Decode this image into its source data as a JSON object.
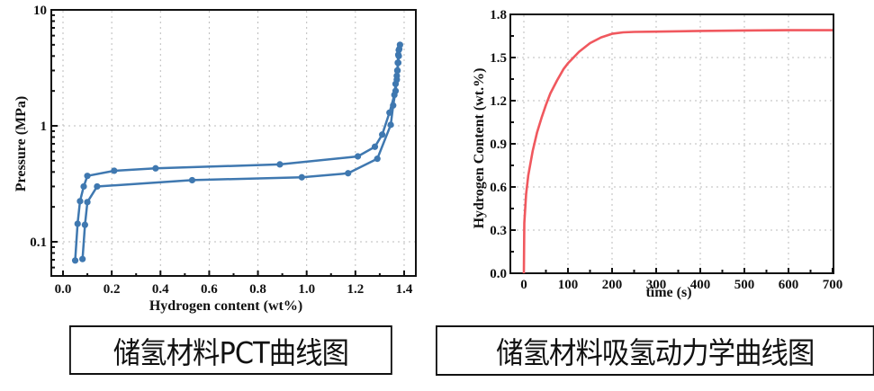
{
  "captions": {
    "left": "储氢材料PCT曲线图",
    "right": "储氢材料吸氢动力学曲线图"
  },
  "colors": {
    "pct_series": "#3f78b0",
    "kinetics_series": "#f0585e",
    "axis": "#111111",
    "grid": "#bbbbbb"
  },
  "chart_data": [
    {
      "type": "line",
      "title": "",
      "xlabel": "Hydrogen content (wt%)",
      "ylabel": "Pressure (MPa)",
      "xlim": [
        -0.05,
        1.45
      ],
      "ylim": [
        0.05,
        10
      ],
      "yscale": "log",
      "x_ticks": [
        "0.0",
        "0.2",
        "0.4",
        "0.6",
        "0.8",
        "1.0",
        "1.2",
        "1.4"
      ],
      "y_ticks": [
        "0.1",
        "1",
        "10"
      ],
      "grid": true,
      "legend": null,
      "series": [
        {
          "name": "upper curve",
          "points": [
            [
              0.05,
              0.069
            ],
            [
              0.06,
              0.143
            ],
            [
              0.07,
              0.224
            ],
            [
              0.085,
              0.3
            ],
            [
              0.1,
              0.37
            ],
            [
              0.21,
              0.41
            ],
            [
              0.38,
              0.43
            ],
            [
              0.89,
              0.465
            ],
            [
              1.21,
              0.545
            ],
            [
              1.28,
              0.66
            ],
            [
              1.31,
              0.84
            ],
            [
              1.34,
              1.3
            ],
            [
              1.36,
              1.85
            ],
            [
              1.365,
              2.3
            ],
            [
              1.37,
              2.7
            ],
            [
              1.372,
              3.0
            ],
            [
              1.374,
              3.5
            ],
            [
              1.376,
              4.1
            ],
            [
              1.378,
              4.5
            ],
            [
              1.383,
              5.0
            ]
          ]
        },
        {
          "name": "lower curve",
          "points": [
            [
              0.08,
              0.071
            ],
            [
              0.09,
              0.14
            ],
            [
              0.1,
              0.22
            ],
            [
              0.14,
              0.3
            ],
            [
              0.53,
              0.34
            ],
            [
              0.98,
              0.36
            ],
            [
              1.17,
              0.39
            ],
            [
              1.29,
              0.52
            ],
            [
              1.345,
              1.02
            ],
            [
              1.355,
              1.5
            ],
            [
              1.365,
              2.0
            ],
            [
              1.37,
              2.5
            ],
            [
              1.373,
              3.0
            ],
            [
              1.376,
              3.5
            ],
            [
              1.378,
              4.0
            ],
            [
              1.38,
              4.6
            ]
          ]
        }
      ]
    },
    {
      "type": "line",
      "title": "",
      "xlabel": "time (s)",
      "ylabel": "Hydrogen Content (wt.%)",
      "xlim": [
        -30,
        700
      ],
      "ylim": [
        0,
        1.8
      ],
      "x_ticks": [
        "0",
        "100",
        "200",
        "300",
        "400",
        "500",
        "600",
        "700"
      ],
      "y_ticks": [
        "0.0",
        "0.3",
        "0.6",
        "0.9",
        "1.2",
        "1.5",
        "1.8"
      ],
      "grid": true,
      "legend": null,
      "series": [
        {
          "name": "absorption kinetics",
          "points": [
            [
              0,
              0.0
            ],
            [
              1,
              0.35
            ],
            [
              5,
              0.55
            ],
            [
              10,
              0.68
            ],
            [
              20,
              0.85
            ],
            [
              30,
              0.98
            ],
            [
              40,
              1.08
            ],
            [
              50,
              1.17
            ],
            [
              60,
              1.25
            ],
            [
              75,
              1.34
            ],
            [
              90,
              1.42
            ],
            [
              100,
              1.46
            ],
            [
              125,
              1.54
            ],
            [
              150,
              1.6
            ],
            [
              175,
              1.64
            ],
            [
              200,
              1.665
            ],
            [
              225,
              1.675
            ],
            [
              250,
              1.678
            ],
            [
              300,
              1.68
            ],
            [
              400,
              1.685
            ],
            [
              500,
              1.688
            ],
            [
              600,
              1.69
            ],
            [
              700,
              1.69
            ]
          ]
        }
      ]
    }
  ]
}
